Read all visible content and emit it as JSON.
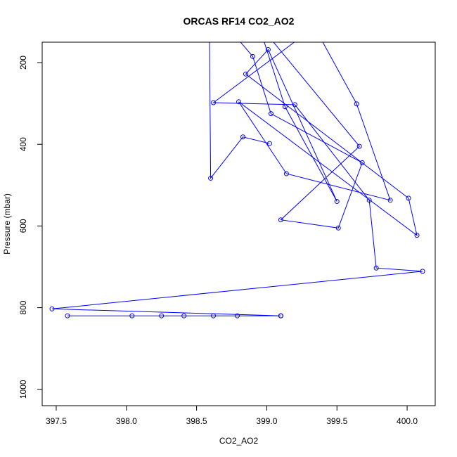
{
  "chart_data": {
    "type": "line",
    "title": "ORCAS RF14 CO2_AO2",
    "xlabel": "CO2_AO2",
    "ylabel": "Pressure (mbar)",
    "xlim": [
      397.4,
      400.2
    ],
    "ylim": [
      1040,
      150
    ],
    "y_reversed": true,
    "x_ticks": [
      397.5,
      398.0,
      398.5,
      399.0,
      399.5,
      400.0
    ],
    "x_tick_labels": [
      "397.5",
      "398.0",
      "398.5",
      "399.0",
      "399.5",
      "400.0"
    ],
    "y_ticks": [
      200,
      400,
      600,
      800,
      1000
    ],
    "y_tick_labels": [
      "200",
      "400",
      "600",
      "800",
      "1000"
    ],
    "series_color": "#0000ff",
    "series": [
      {
        "x": [
          399.1,
          398.79,
          398.62,
          398.41,
          398.25,
          398.04,
          399.1,
          397.58,
          399.1,
          397.47,
          400.11,
          399.78,
          399.73,
          399.2,
          398.62,
          399.34,
          399.64,
          399.88,
          399.14,
          398.8,
          400.07,
          400.01,
          398.85,
          399.01,
          399.5,
          399.13,
          398.94,
          399.66,
          399.1,
          399.51,
          399.68,
          399.03,
          398.9,
          398.59,
          398.6,
          398.83,
          399.02
        ],
        "y": [
          820,
          820,
          820,
          820,
          820,
          820,
          820,
          820,
          820,
          803,
          711,
          703,
          537,
          303,
          298,
          113,
          301,
          537,
          472,
          296,
          623,
          532,
          228,
          168,
          540,
          308,
          105,
          405,
          585,
          605,
          445,
          325,
          185,
          60,
          483,
          382,
          398
        ]
      }
    ]
  }
}
